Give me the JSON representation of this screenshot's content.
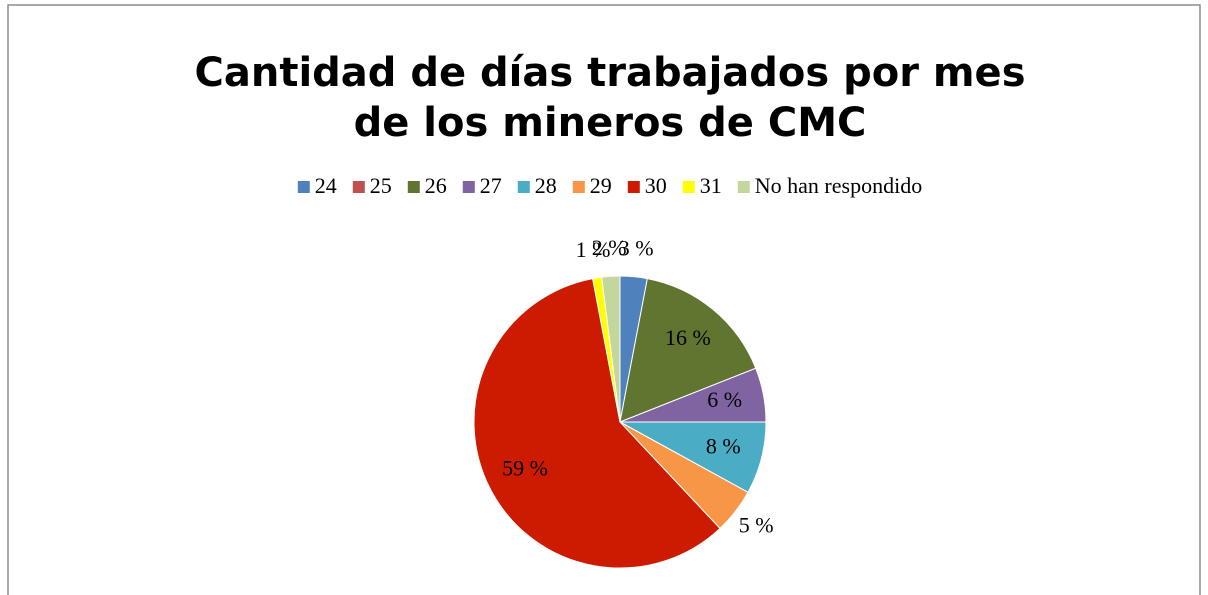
{
  "chart_data": {
    "type": "pie",
    "title_lines": [
      "Cantidad de días trabajados por mes",
      "de los mineros de CMC"
    ],
    "categories": [
      "24",
      "25",
      "26",
      "27",
      "28",
      "29",
      "30",
      "31",
      "No han respondido"
    ],
    "values": [
      3,
      0,
      16,
      6,
      8,
      5,
      59,
      1,
      2
    ],
    "value_labels": [
      "3 %",
      null,
      "16 %",
      "6 %",
      "8 %",
      "5 %",
      "59 %",
      "1 %",
      "2 %"
    ],
    "colors": [
      "#4f81bd",
      "#c0504d",
      "#5f7530",
      "#8064a2",
      "#4bacc6",
      "#f79646",
      "#cc1b00",
      "#ffff00",
      "#c3d69b"
    ],
    "legend": "top"
  }
}
